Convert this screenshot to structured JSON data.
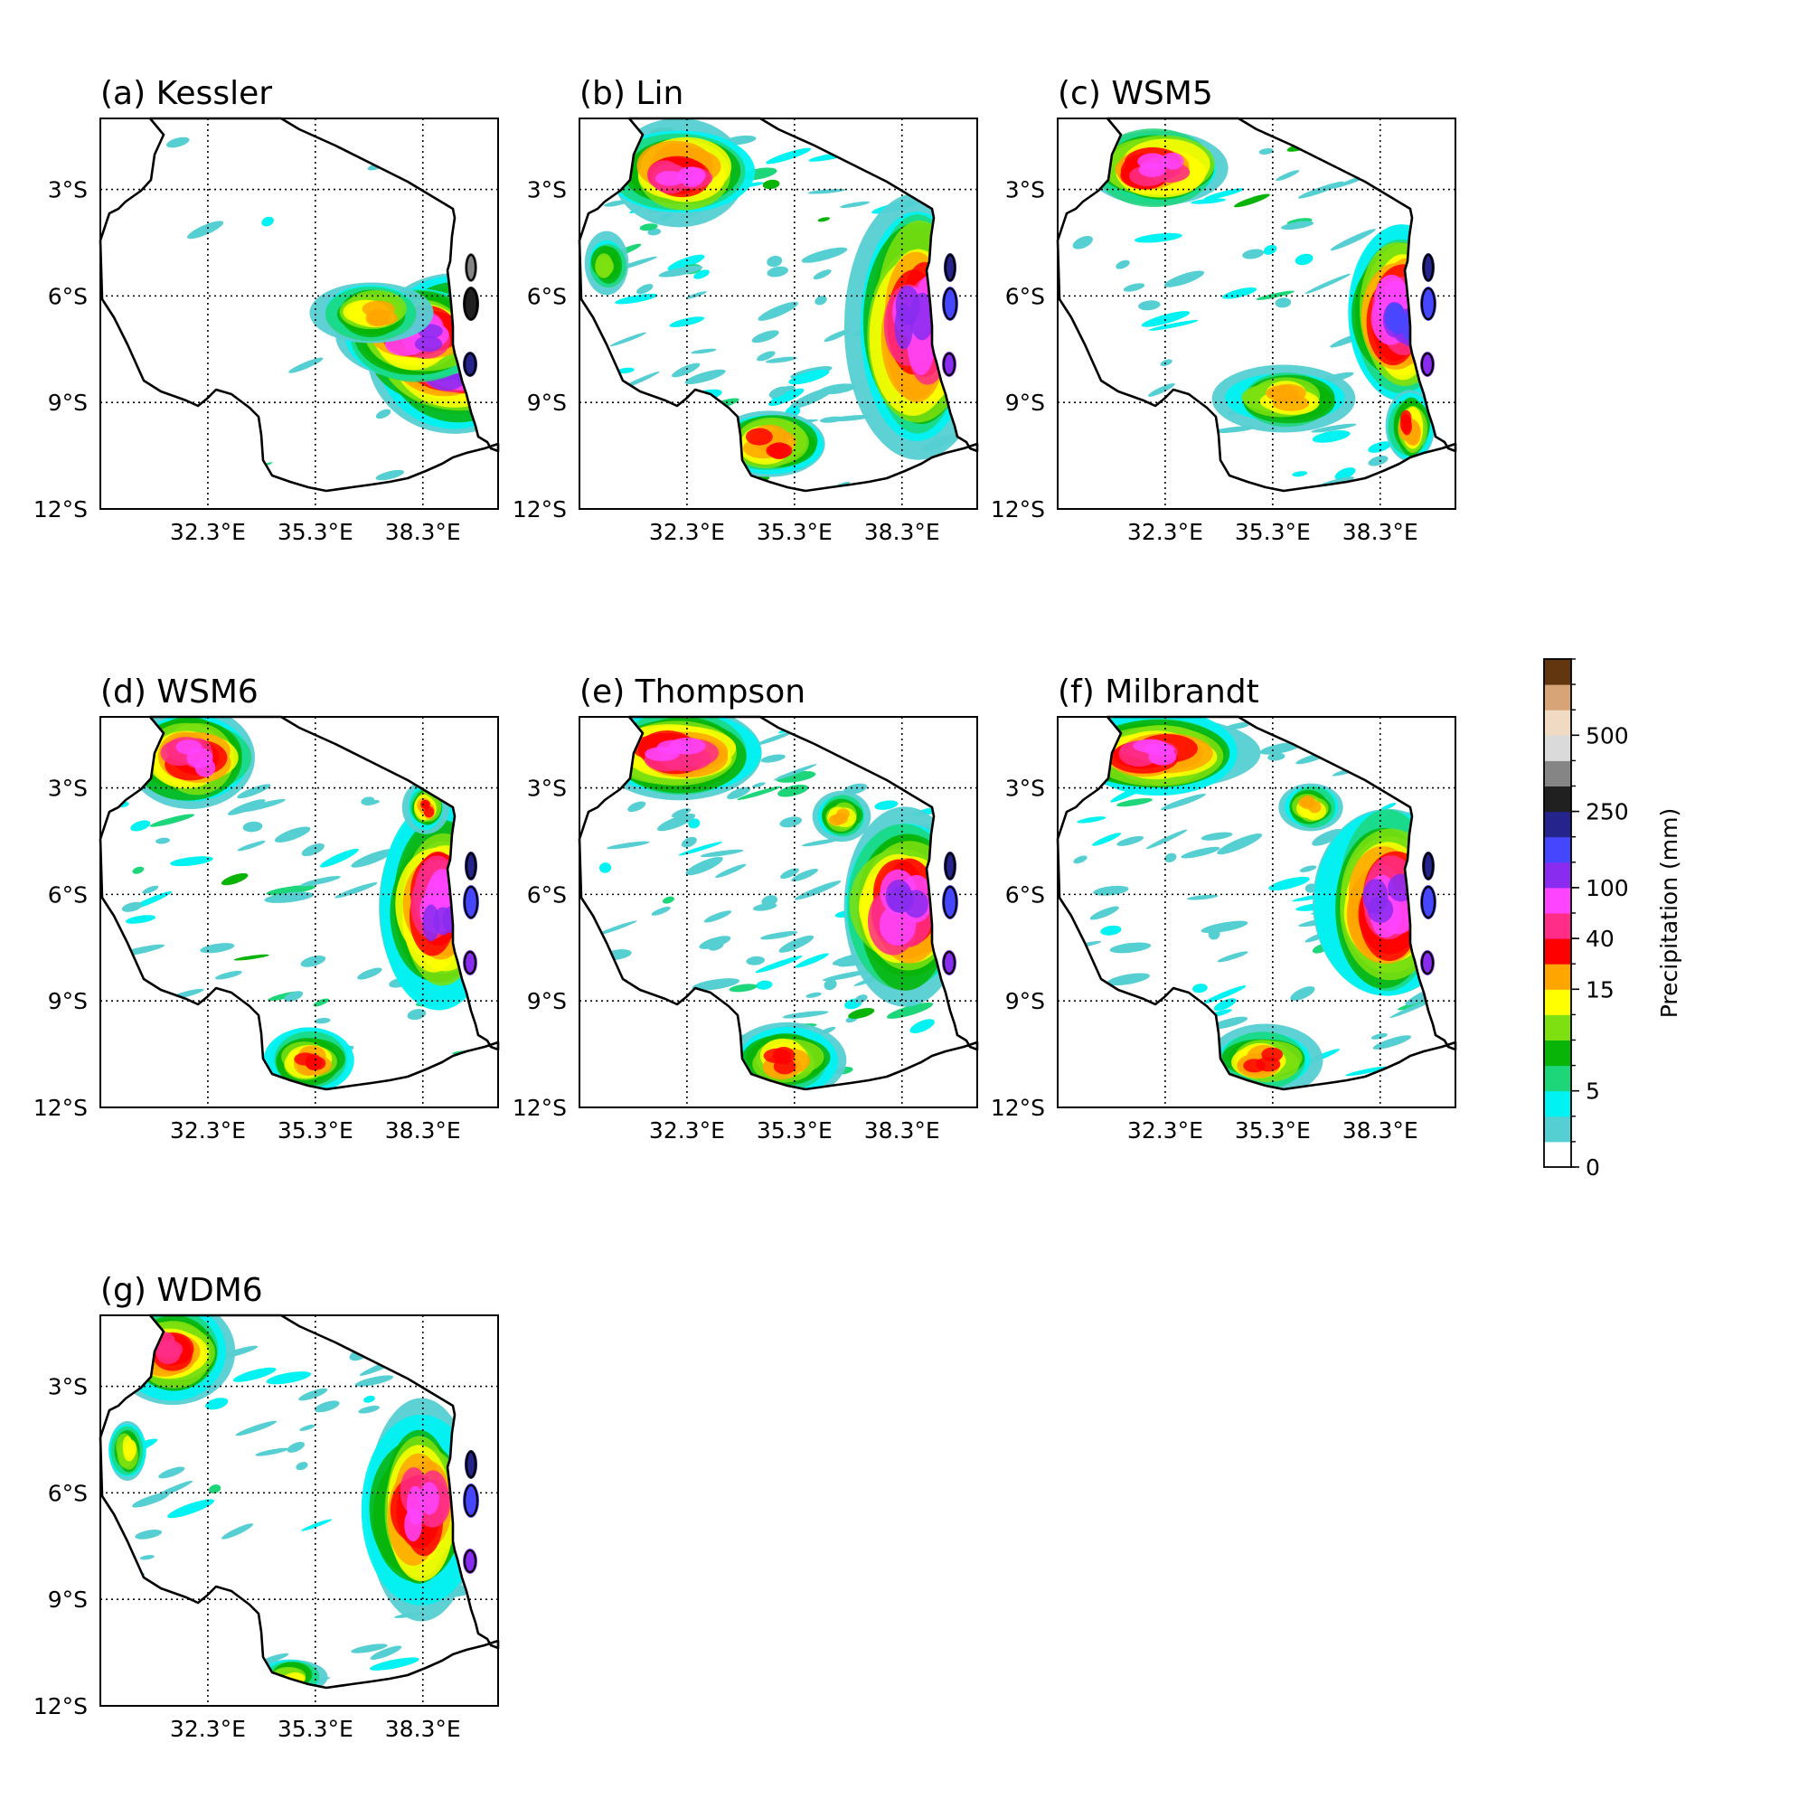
{
  "figure": {
    "panels": [
      {
        "id": "a",
        "title": "(a) Kessler",
        "pattern": "kessler"
      },
      {
        "id": "b",
        "title": "(b) Lin",
        "pattern": "lin"
      },
      {
        "id": "c",
        "title": "(c) WSM5",
        "pattern": "wsm5"
      },
      {
        "id": "d",
        "title": "(d) WSM6",
        "pattern": "wsm6"
      },
      {
        "id": "e",
        "title": "(e) Thompson",
        "pattern": "thompson"
      },
      {
        "id": "f",
        "title": "(f) Milbrandt",
        "pattern": "milbrandt"
      },
      {
        "id": "g",
        "title": "(g) WDM6",
        "pattern": "wdm6"
      }
    ],
    "map": {
      "lon_range": [
        29.3,
        40.4
      ],
      "lat_range": [
        -12.0,
        -1.0
      ],
      "x_ticks": [
        {
          "value": 32.3,
          "label": "32.3°E"
        },
        {
          "value": 35.3,
          "label": "35.3°E"
        },
        {
          "value": 38.3,
          "label": "38.3°E"
        }
      ],
      "y_ticks": [
        {
          "value": -3,
          "label": "3°S"
        },
        {
          "value": -6,
          "label": "6°S"
        },
        {
          "value": -9,
          "label": "9°S"
        },
        {
          "value": -12,
          "label": "12°S"
        }
      ],
      "gridlines": "dotted",
      "country_outline": "Tanzania"
    },
    "colorbar": {
      "label": "Precipitation (mm)",
      "orientation": "vertical",
      "position": "right",
      "tick_labels": [
        {
          "level_index": 0,
          "label": "0"
        },
        {
          "level_index": 3,
          "label": "5"
        },
        {
          "level_index": 7,
          "label": "15"
        },
        {
          "level_index": 9,
          "label": "40"
        },
        {
          "level_index": 11,
          "label": "100"
        },
        {
          "level_index": 14,
          "label": "250"
        },
        {
          "level_index": 17,
          "label": "500"
        }
      ],
      "colors": [
        "#ffffff",
        "#55cfd2",
        "#00f2f2",
        "#1ed67a",
        "#08b408",
        "#7ee010",
        "#ffff00",
        "#ffa500",
        "#ff0000",
        "#ff2d87",
        "#ff44ff",
        "#8a2cf0",
        "#4646ff",
        "#24248c",
        "#202020",
        "#858585",
        "#dadada",
        "#f0dac3",
        "#d7a478",
        "#623710"
      ]
    }
  }
}
